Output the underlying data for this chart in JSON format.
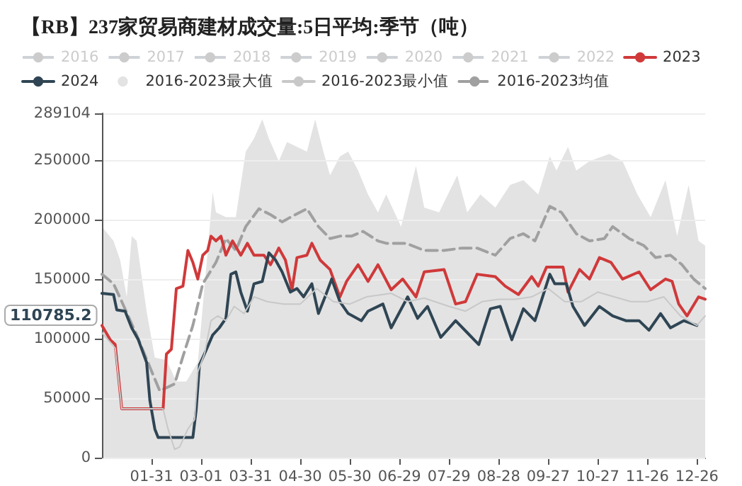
{
  "chart_data": {
    "type": "line",
    "title": "【RB】237家贸易商建材成交量:5日平均:季节（吨）",
    "xlim": [
      "--01-01",
      "--12-31"
    ],
    "xticks": [
      {
        "value": "--01-31",
        "label": "01-31"
      },
      {
        "value": "--03-01",
        "label": "03-01"
      },
      {
        "value": "--03-31",
        "label": "03-31"
      },
      {
        "value": "--04-30",
        "label": "04-30"
      },
      {
        "value": "--05-30",
        "label": "05-30"
      },
      {
        "value": "--06-29",
        "label": "06-29"
      },
      {
        "value": "--07-29",
        "label": "07-29"
      },
      {
        "value": "--08-28",
        "label": "08-28"
      },
      {
        "value": "--09-27",
        "label": "09-27"
      },
      {
        "value": "--10-27",
        "label": "10-27"
      },
      {
        "value": "--11-26",
        "label": "11-26"
      },
      {
        "value": "--12-26",
        "label": "12-26"
      }
    ],
    "ylim": [
      0,
      289104
    ],
    "yticks": [
      0,
      50000,
      100000,
      150000,
      200000,
      250000,
      289104
    ],
    "grid": "y",
    "legend": "top",
    "marker": "none",
    "annotations": [
      "110785.2"
    ],
    "series": [
      {
        "name": "2016"
      },
      {
        "name": "2017"
      },
      {
        "name": "2018"
      },
      {
        "name": "2019"
      },
      {
        "name": "2020"
      },
      {
        "name": "2021"
      },
      {
        "name": "2022"
      },
      {
        "name": "2023",
        "color": "#d0393a",
        "x": [
          "--01-01",
          "--01-06",
          "--01-09",
          "--01-13",
          "--02-07",
          "--02-09",
          "--02-12",
          "--02-15",
          "--02-19",
          "--02-22",
          "--02-25",
          "--02-28",
          "--03-02",
          "--03-05",
          "--03-07",
          "--03-10",
          "--03-13",
          "--03-16",
          "--03-20",
          "--03-25",
          "--03-29",
          "--04-02",
          "--04-08",
          "--04-12",
          "--04-17",
          "--04-21",
          "--04-25",
          "--04-28",
          "--05-04",
          "--05-07",
          "--05-12",
          "--05-18",
          "--05-24",
          "--05-28",
          "--06-04",
          "--06-10",
          "--06-16",
          "--06-24",
          "--07-01",
          "--07-09",
          "--07-14",
          "--07-26",
          "--08-02",
          "--08-08",
          "--08-15",
          "--08-26",
          "--09-01",
          "--09-09",
          "--09-17",
          "--09-21",
          "--09-26",
          "--10-06",
          "--10-09",
          "--10-16",
          "--10-22",
          "--10-28",
          "--11-04",
          "--11-11",
          "--11-21",
          "--11-28",
          "--12-07",
          "--12-11",
          "--12-15",
          "--12-20",
          "--12-27",
          "--12-31"
        ],
        "values": [
          111000,
          99000,
          95000,
          41000,
          41000,
          87000,
          91000,
          142000,
          144000,
          174000,
          164000,
          150000,
          170000,
          174000,
          186000,
          182000,
          186000,
          170000,
          182000,
          170000,
          180000,
          170000,
          170000,
          162000,
          176000,
          166000,
          141000,
          168000,
          170000,
          180000,
          166000,
          158000,
          135000,
          148000,
          162000,
          148000,
          162000,
          141000,
          150000,
          135000,
          156000,
          158000,
          129000,
          131000,
          154000,
          152000,
          144000,
          137000,
          152000,
          144000,
          160000,
          160000,
          139000,
          158000,
          150000,
          168000,
          164000,
          150000,
          156000,
          141000,
          150000,
          148000,
          129000,
          119000,
          135000,
          133000
        ]
      },
      {
        "name": "2024",
        "color": "#2f4554",
        "x": [
          "--01-01",
          "--01-08",
          "--01-10",
          "--01-15",
          "--01-19",
          "--01-23",
          "--01-28",
          "--01-30",
          "--02-02",
          "--02-04",
          "--02-22",
          "--02-25",
          "--02-27",
          "--02-29",
          "--03-03",
          "--03-08",
          "--03-12",
          "--03-16",
          "--03-19",
          "--03-22",
          "--03-25",
          "--03-29",
          "--04-02",
          "--04-07",
          "--04-11",
          "--04-15",
          "--04-19",
          "--04-24",
          "--04-28",
          "--05-02",
          "--05-07",
          "--05-11",
          "--05-15",
          "--05-19",
          "--05-24",
          "--05-29",
          "--06-06",
          "--06-10",
          "--06-19",
          "--06-24",
          "--07-04",
          "--07-10",
          "--07-16",
          "--07-24",
          "--08-02",
          "--08-09",
          "--08-16",
          "--08-23",
          "--08-29",
          "--09-05",
          "--09-12",
          "--09-19",
          "--09-28",
          "--10-01",
          "--10-08",
          "--10-12",
          "--10-19",
          "--10-28",
          "--11-05",
          "--11-13",
          "--11-21",
          "--11-27",
          "--12-04",
          "--12-10",
          "--12-18",
          "--12-26"
        ],
        "values": [
          138000,
          137000,
          124000,
          123000,
          109000,
          99000,
          80000,
          48000,
          24000,
          17000,
          17000,
          17000,
          40000,
          78000,
          87000,
          103000,
          109000,
          117000,
          154000,
          156000,
          139000,
          123000,
          146000,
          148000,
          172000,
          166000,
          156000,
          139000,
          142000,
          135000,
          146000,
          121000,
          135000,
          150000,
          131000,
          121000,
          115000,
          123000,
          129000,
          109000,
          135000,
          117000,
          127000,
          101000,
          115000,
          105000,
          95000,
          125000,
          127000,
          99000,
          125000,
          115000,
          154000,
          146000,
          146000,
          127000,
          111000,
          127000,
          119000,
          115000,
          115000,
          107000,
          121000,
          109000,
          115000,
          111000
        ]
      },
      {
        "name": "2016-2023最大值",
        "type": "area",
        "color": "#e3e3e3",
        "x": [
          "--01-01",
          "--01-08",
          "--01-12",
          "--01-16",
          "--01-19",
          "--01-22",
          "--01-28",
          "--02-02",
          "--02-09",
          "--02-15",
          "--02-21",
          "--02-28",
          "--03-05",
          "--03-08",
          "--03-10",
          "--03-16",
          "--03-22",
          "--03-28",
          "--04-02",
          "--04-07",
          "--04-11",
          "--04-17",
          "--04-22",
          "--05-04",
          "--05-09",
          "--05-14",
          "--05-18",
          "--05-24",
          "--05-29",
          "--06-04",
          "--06-10",
          "--06-16",
          "--06-21",
          "--06-30",
          "--07-09",
          "--07-14",
          "--07-23",
          "--08-03",
          "--08-09",
          "--08-17",
          "--08-26",
          "--09-04",
          "--09-12",
          "--09-21",
          "--09-28",
          "--10-02",
          "--10-09",
          "--10-14",
          "--10-22",
          "--11-03",
          "--11-11",
          "--11-20",
          "--11-28",
          "--12-07",
          "--12-14",
          "--12-21",
          "--12-27",
          "--12-31"
        ],
        "values": [
          194000,
          182000,
          166000,
          135000,
          186000,
          182000,
          123000,
          84000,
          82000,
          64000,
          64000,
          80000,
          174000,
          223000,
          206000,
          202000,
          202000,
          257000,
          268000,
          284000,
          268000,
          249000,
          265000,
          257000,
          284000,
          257000,
          237000,
          253000,
          257000,
          241000,
          221000,
          206000,
          221000,
          194000,
          245000,
          210000,
          206000,
          237000,
          206000,
          221000,
          210000,
          229000,
          233000,
          221000,
          253000,
          241000,
          261000,
          241000,
          249000,
          255000,
          249000,
          221000,
          202000,
          233000,
          186000,
          229000,
          182000,
          178000
        ]
      },
      {
        "name": "2016-2023最小值",
        "type": "line",
        "color": "#c8c8c8",
        "x": [
          "--01-01",
          "--01-09",
          "--01-13",
          "--02-07",
          "--02-10",
          "--02-14",
          "--02-17",
          "--02-22",
          "--02-26",
          "--02-28",
          "--03-03",
          "--03-07",
          "--03-11",
          "--03-16",
          "--03-21",
          "--03-27",
          "--04-02",
          "--04-10",
          "--04-20",
          "--04-30",
          "--05-10",
          "--05-20",
          "--05-30",
          "--06-09",
          "--06-24",
          "--07-04",
          "--07-14",
          "--07-29",
          "--08-08",
          "--08-18",
          "--08-28",
          "--09-07",
          "--09-17",
          "--09-27",
          "--10-07",
          "--10-17",
          "--10-27",
          "--11-06",
          "--11-16",
          "--11-26",
          "--12-06",
          "--12-16",
          "--12-26",
          "--12-31"
        ],
        "values": [
          105000,
          92000,
          41000,
          41000,
          24000,
          7000,
          9000,
          24000,
          32000,
          72000,
          87000,
          115000,
          119000,
          115000,
          127000,
          121000,
          135000,
          131000,
          129000,
          129000,
          142000,
          131000,
          129000,
          135000,
          138000,
          131000,
          134000,
          127000,
          123000,
          131000,
          133000,
          133000,
          135000,
          142000,
          131000,
          131000,
          139000,
          135000,
          131000,
          131000,
          135000,
          119000,
          111000,
          119000
        ]
      },
      {
        "name": "2016-2023均值",
        "color": "#a0a0a0",
        "line_style": "dashed",
        "x": [
          "--01-01",
          "--01-08",
          "--01-13",
          "--01-22",
          "--01-30",
          "--02-05",
          "--02-14",
          "--02-19",
          "--02-25",
          "--03-02",
          "--03-10",
          "--03-16",
          "--03-22",
          "--03-28",
          "--04-05",
          "--04-12",
          "--04-19",
          "--04-27",
          "--05-04",
          "--05-11",
          "--05-18",
          "--05-24",
          "--05-31",
          "--06-07",
          "--06-16",
          "--06-21",
          "--07-03",
          "--07-14",
          "--07-26",
          "--08-06",
          "--08-15",
          "--08-26",
          "--09-04",
          "--09-12",
          "--09-19",
          "--09-28",
          "--10-05",
          "--10-14",
          "--10-22",
          "--10-31",
          "--11-05",
          "--11-15",
          "--11-24",
          "--12-01",
          "--12-10",
          "--12-17",
          "--12-24",
          "--12-31"
        ],
        "values": [
          154000,
          146000,
          131000,
          103000,
          76000,
          56000,
          62000,
          85000,
          111000,
          146000,
          164000,
          184000,
          174000,
          194000,
          209000,
          204000,
          198000,
          204000,
          209000,
          194000,
          184000,
          186000,
          186000,
          190000,
          182000,
          180000,
          180000,
          174000,
          174000,
          176000,
          176000,
          170000,
          184000,
          188000,
          182000,
          211000,
          206000,
          188000,
          182000,
          184000,
          194000,
          184000,
          178000,
          168000,
          170000,
          162000,
          150000,
          142000
        ]
      }
    ]
  }
}
